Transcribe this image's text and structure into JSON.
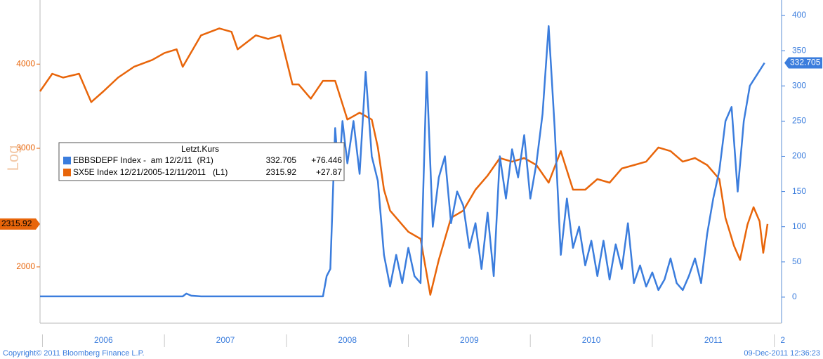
{
  "chart_data": {
    "type": "line",
    "ylabel": "Log",
    "log_y": true,
    "ylim": [
      1650,
      4980
    ],
    "yticks": [
      2000,
      3000,
      4000
    ],
    "y2lim": [
      -37,
      422
    ],
    "y2ticks": [
      0,
      50,
      100,
      150,
      200,
      250,
      300,
      350,
      400
    ],
    "xlim": [
      2005.98,
      2012.06
    ],
    "xticks": [
      2006,
      2007,
      2008,
      2009,
      2010,
      2011,
      2012
    ],
    "xlabels": [
      {
        "value": 2006.5,
        "label": "2006"
      },
      {
        "value": 2007.5,
        "label": "2007"
      },
      {
        "value": 2008.5,
        "label": "2008"
      },
      {
        "value": 2009.5,
        "label": "2009"
      },
      {
        "value": 2010.5,
        "label": "2010"
      },
      {
        "value": 2011.5,
        "label": "2011"
      },
      {
        "value": 2012.07,
        "label": "2"
      }
    ],
    "legend_title": "Letzt.Kurs",
    "copyright": "Copyright© 2011 Bloomberg Finance L.P.",
    "timestamp": "09-Dec-2011 12:36:23",
    "series": [
      {
        "name": "EBBSDEPF Index -  am 12/2/11  (R1)",
        "color": "#3b7ddd",
        "axis": "y2",
        "change_label": "+76.446",
        "x": [
          2005.98,
          2006.5,
          2007.0,
          2007.15,
          2007.18,
          2007.22,
          2007.3,
          2008.0,
          2008.3,
          2008.33,
          2008.36,
          2008.4,
          2008.43,
          2008.46,
          2008.5,
          2008.55,
          2008.6,
          2008.65,
          2008.7,
          2008.75,
          2008.8,
          2008.85,
          2008.9,
          2008.95,
          2009.0,
          2009.05,
          2009.1,
          2009.15,
          2009.2,
          2009.25,
          2009.3,
          2009.35,
          2009.4,
          2009.45,
          2009.5,
          2009.55,
          2009.6,
          2009.65,
          2009.7,
          2009.75,
          2009.8,
          2009.85,
          2009.9,
          2009.95,
          2010.0,
          2010.05,
          2010.1,
          2010.15,
          2010.2,
          2010.25,
          2010.3,
          2010.35,
          2010.4,
          2010.45,
          2010.5,
          2010.55,
          2010.6,
          2010.65,
          2010.7,
          2010.75,
          2010.8,
          2010.85,
          2010.9,
          2010.95,
          2011.0,
          2011.05,
          2011.1,
          2011.15,
          2011.2,
          2011.25,
          2011.3,
          2011.35,
          2011.4,
          2011.45,
          2011.5,
          2011.55,
          2011.6,
          2011.65,
          2011.7,
          2011.75,
          2011.8,
          2011.92
        ],
        "values": [
          1,
          1,
          1,
          1,
          5,
          2,
          1,
          1,
          1,
          30,
          40,
          240,
          170,
          250,
          190,
          250,
          175,
          320,
          200,
          165,
          60,
          15,
          60,
          20,
          70,
          30,
          20,
          320,
          100,
          170,
          200,
          105,
          150,
          130,
          70,
          105,
          40,
          120,
          30,
          200,
          140,
          210,
          170,
          230,
          140,
          190,
          260,
          385,
          240,
          60,
          140,
          70,
          100,
          45,
          80,
          30,
          80,
          25,
          75,
          40,
          105,
          20,
          45,
          15,
          35,
          10,
          25,
          55,
          20,
          10,
          30,
          55,
          20,
          90,
          140,
          180,
          250,
          270,
          150,
          250,
          300,
          332.705
        ]
      },
      {
        "name": "SX5E Index 12/21/2005-12/11/2011   (L1)",
        "color": "#e8650a",
        "axis": "y",
        "change_label": "+27.87",
        "x": [
          2005.98,
          2006.08,
          2006.17,
          2006.3,
          2006.4,
          2006.5,
          2006.62,
          2006.75,
          2006.9,
          2007.0,
          2007.1,
          2007.15,
          2007.3,
          2007.45,
          2007.55,
          2007.6,
          2007.75,
          2007.85,
          2007.95,
          2008.05,
          2008.1,
          2008.2,
          2008.3,
          2008.4,
          2008.5,
          2008.6,
          2008.7,
          2008.75,
          2008.8,
          2008.85,
          2008.95,
          2009.0,
          2009.1,
          2009.18,
          2009.25,
          2009.35,
          2009.45,
          2009.55,
          2009.65,
          2009.75,
          2009.85,
          2009.95,
          2010.05,
          2010.15,
          2010.25,
          2010.35,
          2010.45,
          2010.55,
          2010.65,
          2010.75,
          2010.85,
          2010.95,
          2011.05,
          2011.15,
          2011.25,
          2011.35,
          2011.45,
          2011.55,
          2011.6,
          2011.67,
          2011.72,
          2011.78,
          2011.83,
          2011.88,
          2011.91,
          2011.945
        ],
        "values": [
          3645,
          3870,
          3820,
          3870,
          3513,
          3645,
          3820,
          3963,
          4058,
          4155,
          4207,
          3963,
          4413,
          4520,
          4467,
          4207,
          4413,
          4360,
          4413,
          3732,
          3732,
          3555,
          3777,
          3777,
          3309,
          3388,
          3309,
          3008,
          2604,
          2424,
          2310,
          2255,
          2201,
          1818,
          2049,
          2365,
          2424,
          2604,
          2733,
          2901,
          2866,
          2901,
          2832,
          2667,
          2971,
          2604,
          2604,
          2700,
          2667,
          2800,
          2832,
          2866,
          3008,
          2971,
          2866,
          2901,
          2832,
          2700,
          2365,
          2149,
          2049,
          2310,
          2453,
          2337,
          2099,
          2315.92
        ]
      }
    ]
  }
}
